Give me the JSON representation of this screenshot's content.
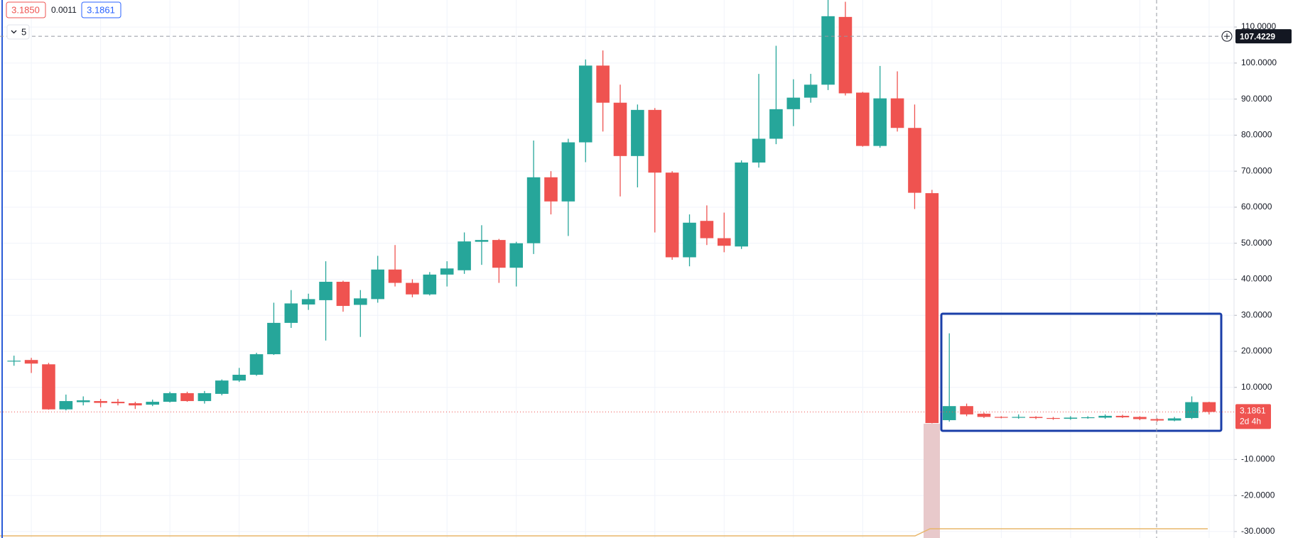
{
  "chart_data": {
    "type": "candlestick",
    "header": [
      "3.1850",
      "0.0011",
      "3.1861"
    ],
    "interval": "5",
    "open": [
      17.3,
      17.6,
      16.4,
      3.9,
      5.9,
      6.2,
      6,
      5.6,
      5.2,
      6,
      8.4,
      6.2,
      8.2,
      11.9,
      13.5,
      19.2,
      27.9,
      33,
      34.2,
      39.3,
      32.9,
      34.5,
      42.7,
      39,
      35.8,
      41.3,
      42.5,
      50.4,
      50.9,
      43.2,
      50,
      68.3,
      61.6,
      78,
      99.3,
      89,
      74.2,
      87,
      69.6,
      46.1,
      56.2,
      51.4,
      49.1,
      72.4,
      79,
      87.2,
      90.4,
      94,
      112.8,
      91.8,
      77,
      90.2,
      82,
      63.9,
      0.9,
      4.8,
      2.7,
      1.8,
      1.6,
      1.8,
      1.5,
      1.3,
      1.6,
      1.6,
      2.1,
      1.8,
      1.2,
      0.8,
      1.5,
      5.9
    ],
    "high": [
      18.8,
      18.2,
      16.8,
      8,
      7.5,
      6.8,
      6.8,
      6,
      6.6,
      8.8,
      8.8,
      9,
      12.2,
      15.4,
      19.6,
      33.5,
      37,
      36,
      45,
      39.6,
      37,
      46.5,
      49.5,
      40,
      42,
      45,
      53,
      55,
      51.2,
      50.4,
      78.5,
      70,
      79,
      101,
      103.5,
      94,
      88.5,
      87.5,
      70,
      58,
      60.5,
      58.5,
      73,
      97,
      104.8,
      95.5,
      97,
      118,
      117,
      92,
      99.2,
      97.7,
      88.5,
      64.8,
      25,
      5.5,
      3,
      2,
      2.5,
      2,
      1.8,
      2,
      2,
      2.5,
      2.4,
      2,
      1.4,
      1.8,
      7.5,
      6
    ],
    "low": [
      16,
      14,
      3.8,
      3.6,
      5,
      4.5,
      5,
      4,
      4.8,
      5.8,
      6,
      5.5,
      7.8,
      11.5,
      13.2,
      19,
      26.5,
      31.5,
      23,
      31,
      24,
      33.5,
      38,
      35,
      35.5,
      38,
      41.5,
      44,
      39,
      38,
      47,
      58,
      52,
      72.5,
      81,
      63,
      65.5,
      53,
      45.4,
      43.6,
      49.5,
      47.5,
      48.4,
      71,
      77.5,
      82.5,
      89,
      92.5,
      91,
      76.8,
      76.5,
      81,
      59.5,
      0,
      0.5,
      2,
      1.5,
      1.4,
      1.3,
      1.2,
      1,
      1,
      1.3,
      1.3,
      1.5,
      0.9,
      0.5,
      0.6,
      1.2,
      2.5
    ],
    "close": [
      17.4,
      16.6,
      3.9,
      6.2,
      6.4,
      5.7,
      5.6,
      5,
      6,
      8.4,
      6.2,
      8.4,
      11.9,
      13.5,
      19.2,
      27.9,
      33.3,
      34.5,
      39.3,
      32.6,
      34.7,
      42.7,
      39,
      35.8,
      41.3,
      43,
      50.5,
      50.9,
      43.2,
      50,
      68.3,
      61.6,
      78,
      99.3,
      89,
      74.2,
      87,
      69.6,
      46.1,
      55.7,
      51.4,
      49.3,
      72.4,
      79,
      87.2,
      90.4,
      94,
      113,
      91.6,
      77,
      90.2,
      82,
      64,
      0.1,
      4.8,
      2.5,
      1.8,
      1.6,
      1.8,
      1.5,
      1.3,
      1.6,
      1.7,
      2.1,
      1.7,
      1.2,
      0.8,
      1.4,
      5.9,
      3.19
    ],
    "up_color": "#26a69a",
    "down_color": "#ef5350",
    "ylim": [
      -31.8,
      117.5
    ],
    "yticks": [
      {
        "value": -30,
        "label": "-30.0000"
      },
      {
        "value": -20,
        "label": "-20.0000"
      },
      {
        "value": -10,
        "label": "-10.0000"
      },
      {
        "value": 10,
        "label": "10.0000"
      },
      {
        "value": 20,
        "label": "20.0000"
      },
      {
        "value": 30,
        "label": "30.0000"
      },
      {
        "value": 40,
        "label": "40.0000"
      },
      {
        "value": 50,
        "label": "50.0000"
      },
      {
        "value": 60,
        "label": "60.0000"
      },
      {
        "value": 70,
        "label": "70.0000"
      },
      {
        "value": 80,
        "label": "80.0000"
      },
      {
        "value": 90,
        "label": "90.0000"
      },
      {
        "value": 100,
        "label": "100.0000"
      },
      {
        "value": 110,
        "label": "110.0000"
      }
    ],
    "grid": true,
    "crosshair_price": 107.4229,
    "last_price": 3.1861,
    "countdown": "2d 4h"
  }
}
